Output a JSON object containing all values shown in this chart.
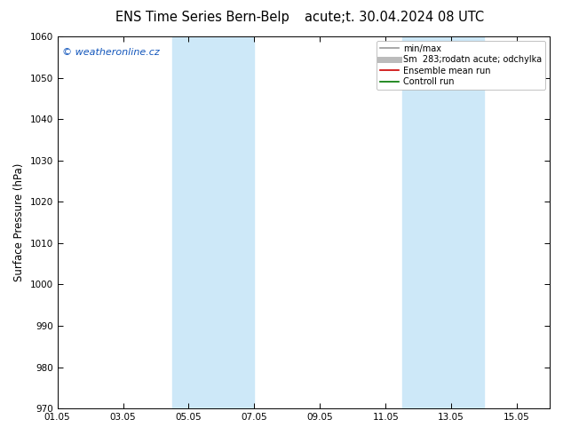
{
  "title": "ENS Time Series Bern-Belp",
  "title2": "acute;t. 30.04.2024 08 UTC",
  "ylabel": "Surface Pressure (hPa)",
  "ylim": [
    970,
    1060
  ],
  "yticks": [
    970,
    980,
    990,
    1000,
    1010,
    1020,
    1030,
    1040,
    1050,
    1060
  ],
  "xtick_labels": [
    "01.05",
    "03.05",
    "05.05",
    "07.05",
    "09.05",
    "11.05",
    "13.05",
    "15.05"
  ],
  "xtick_positions": [
    0,
    2,
    4,
    6,
    8,
    10,
    12,
    14
  ],
  "xlim": [
    0,
    15
  ],
  "weekend_bands": [
    {
      "start": 3.5,
      "end": 6.0
    },
    {
      "start": 10.5,
      "end": 13.0
    }
  ],
  "band_color": "#cde8f8",
  "watermark": "© weatheronline.cz",
  "watermark_color": "#1155bb",
  "legend_entries": [
    {
      "label": "min/max",
      "color": "#999999",
      "lw": 1.2
    },
    {
      "label": "Sm  283;rodatn acute; odchylka",
      "color": "#bbbbbb",
      "lw": 5
    },
    {
      "label": "Ensemble mean run",
      "color": "#cc0000",
      "lw": 1.2
    },
    {
      "label": "Controll run",
      "color": "#007700",
      "lw": 1.2
    }
  ],
  "bg_color": "#ffffff",
  "title_fontsize": 10.5,
  "tick_fontsize": 7.5,
  "ylabel_fontsize": 8.5,
  "watermark_fontsize": 8,
  "legend_fontsize": 7
}
